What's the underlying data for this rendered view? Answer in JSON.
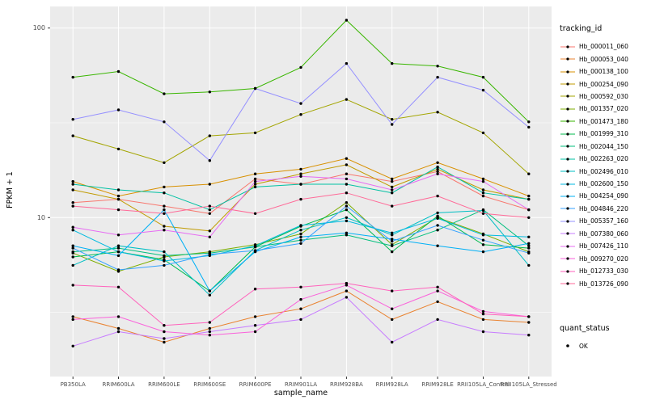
{
  "chart_data": {
    "type": "line",
    "title": "",
    "xlabel": "sample_name",
    "ylabel": "FPKM + 1",
    "y_scale": "log10",
    "ylim": [
      1.45,
      130
    ],
    "y_ticks": [
      10,
      100
    ],
    "y_tick_labels": [
      "10",
      "100"
    ],
    "y_minor_ticks": [
      3.162,
      31.62
    ],
    "panel_bg": "#EBEBEB",
    "grid_color": "#FFFFFF",
    "point_color": "#000000",
    "legend_title": "tracking_id",
    "legend_position": "right",
    "x_categories": [
      "PB350LA",
      "RRIM600LA",
      "RRIM600LE",
      "RRIM600SE",
      "RRIM600PE",
      "RRIM901LA",
      "RRIM928BA",
      "RRIM928LA",
      "RRIM928LE",
      "RRII105LA_Control",
      "RRII105LA_Stressed"
    ],
    "series": [
      {
        "name": "Hb_000011_060",
        "color": "#F8766D",
        "values": [
          12,
          12.5,
          11.5,
          10.5,
          16,
          15,
          17,
          15.5,
          17.5,
          13,
          11
        ]
      },
      {
        "name": "Hb_000053_040",
        "color": "#EA8331",
        "values": [
          3.0,
          2.6,
          2.2,
          2.6,
          3.0,
          3.3,
          4.1,
          2.9,
          3.6,
          2.9,
          2.8
        ]
      },
      {
        "name": "Hb_000138_100",
        "color": "#D89000",
        "values": [
          15.5,
          13,
          14.5,
          15,
          17,
          18,
          20.5,
          16,
          19.5,
          16,
          13
        ]
      },
      {
        "name": "Hb_000254_090",
        "color": "#C09B00",
        "values": [
          14,
          12.5,
          9,
          8.5,
          15,
          17,
          19,
          14.5,
          18,
          14,
          12.5
        ]
      },
      {
        "name": "Hb_000592_030",
        "color": "#A3A500",
        "values": [
          27,
          23,
          19.5,
          27,
          28,
          35,
          42,
          33,
          36,
          28,
          17
        ]
      },
      {
        "name": "Hb_001357_020",
        "color": "#7CAE00",
        "values": [
          6.5,
          5.2,
          6.2,
          6.6,
          7.2,
          8.2,
          12,
          7.2,
          10,
          8.2,
          6.6
        ]
      },
      {
        "name": "Hb_001473_180",
        "color": "#39B600",
        "values": [
          55,
          59,
          45,
          46,
          48,
          62,
          110,
          65,
          63,
          55,
          32
        ]
      },
      {
        "name": "Hb_001999_310",
        "color": "#00BB4E",
        "values": [
          6.2,
          6.6,
          6.0,
          4.1,
          7.0,
          9.0,
          11,
          6.6,
          10.2,
          7.2,
          6.9
        ]
      },
      {
        "name": "Hb_002044_150",
        "color": "#00BF7D",
        "values": [
          6.6,
          6.9,
          6.3,
          6.5,
          7.0,
          7.6,
          8.1,
          7.1,
          8.6,
          11,
          7.1
        ]
      },
      {
        "name": "Hb_002263_020",
        "color": "#00C1A3",
        "values": [
          15,
          14,
          13.5,
          11,
          14.5,
          15,
          15,
          13.5,
          18.5,
          13.5,
          12.5
        ]
      },
      {
        "name": "Hb_002496_010",
        "color": "#00BFC4",
        "values": [
          5.6,
          7.1,
          6.6,
          3.9,
          6.7,
          8.6,
          10,
          8.1,
          10.6,
          10.9,
          5.6
        ]
      },
      {
        "name": "Hb_002600_150",
        "color": "#00BAE0",
        "values": [
          8.6,
          6.6,
          5.9,
          6.3,
          7.1,
          9.1,
          9.6,
          8.3,
          9.9,
          8.1,
          7.9
        ]
      },
      {
        "name": "Hb_004254_090",
        "color": "#00B0F6",
        "values": [
          7.1,
          6.3,
          11,
          4.1,
          6.6,
          7.9,
          8.3,
          7.7,
          7.1,
          6.6,
          7.3
        ]
      },
      {
        "name": "Hb_004846_220",
        "color": "#35A2FF",
        "values": [
          6.9,
          5.3,
          5.6,
          6.4,
          6.7,
          7.3,
          11.5,
          7.5,
          9.1,
          7.6,
          6.5
        ]
      },
      {
        "name": "Hb_005357_160",
        "color": "#9590FF",
        "values": [
          33,
          37,
          32,
          20,
          48,
          40,
          65,
          31,
          55,
          47,
          30
        ]
      },
      {
        "name": "Hb_007380_060",
        "color": "#C77CFF",
        "values": [
          2.1,
          2.5,
          2.3,
          2.5,
          2.7,
          2.9,
          3.8,
          2.2,
          2.9,
          2.5,
          2.4
        ]
      },
      {
        "name": "Hb_007426_110",
        "color": "#E76BF3",
        "values": [
          8.9,
          8.1,
          8.6,
          7.9,
          15.5,
          16.5,
          16,
          14,
          17,
          15.5,
          11
        ]
      },
      {
        "name": "Hb_009270_020",
        "color": "#FA62DB",
        "values": [
          2.9,
          3.0,
          2.5,
          2.4,
          2.5,
          3.7,
          4.4,
          3.3,
          4.1,
          3.2,
          3.0
        ]
      },
      {
        "name": "Hb_012733_030",
        "color": "#FF62BC",
        "values": [
          4.4,
          4.3,
          2.7,
          2.8,
          4.2,
          4.3,
          4.5,
          4.1,
          4.3,
          3.1,
          3.0
        ]
      },
      {
        "name": "Hb_013726_090",
        "color": "#FF6A98",
        "values": [
          11.5,
          11,
          10.5,
          11.5,
          10.5,
          12.5,
          13.5,
          11.5,
          13,
          10.5,
          10
        ]
      }
    ],
    "quant_status": {
      "title": "quant_status",
      "items": [
        {
          "label": "OK",
          "marker": "black-point"
        }
      ]
    }
  }
}
